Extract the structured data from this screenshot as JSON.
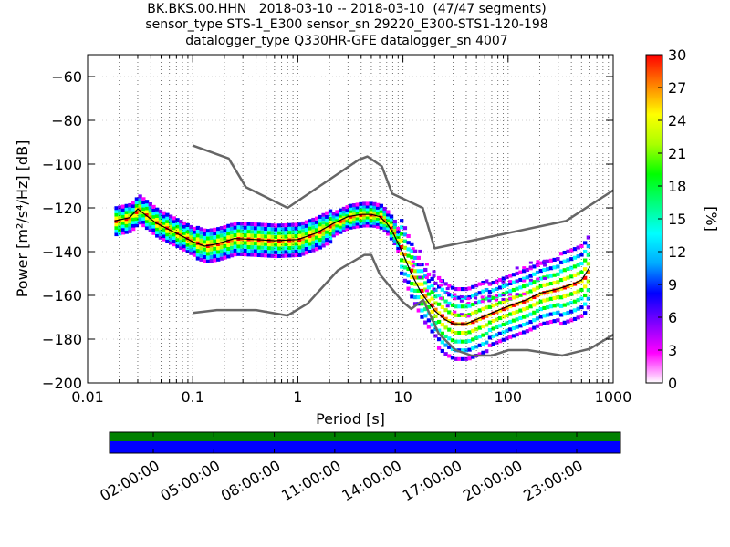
{
  "title_lines": [
    "BK.BKS.00.HHN   2018-03-10 -- 2018-03-10  (47/47 segments)",
    "sensor_type STS-1_E300 sensor_sn 29220_E300-STS1-120-198",
    "datalogger_type Q330HR-GFE datalogger_sn 4007"
  ],
  "chart_data": [
    {
      "type": "heatmap",
      "title": "BK.BKS.00.HHN   2018-03-10 -- 2018-03-10  (47/47 segments)",
      "xlabel": "Period [s]",
      "ylabel": "Power [m²/s⁴/Hz] [dB]",
      "xscale": "log",
      "xlim": [
        0.01,
        1000
      ],
      "ylim": [
        -200,
        -50
      ],
      "xticks": [
        0.01,
        0.1,
        1,
        10,
        100,
        1000
      ],
      "xtick_labels": [
        "0.01",
        "0.1",
        "1",
        "10",
        "100",
        "1000"
      ],
      "yticks": [
        -60,
        -80,
        -100,
        -120,
        -140,
        -160,
        -180,
        -200
      ],
      "ytick_labels": [
        "−60",
        "−80",
        "−100",
        "−120",
        "−140",
        "−160",
        "−180",
        "−200"
      ],
      "grid": "dotted vertical",
      "colorbar": {
        "label": "[%]",
        "range": [
          0,
          30
        ],
        "ticks": [
          0,
          3,
          6,
          9,
          12,
          15,
          18,
          21,
          24,
          27,
          30
        ],
        "colors": [
          "#ffffff",
          "#ff00ff",
          "#8000ff",
          "#0000ff",
          "#00aaff",
          "#00ffff",
          "#00ff80",
          "#00ff00",
          "#aaff00",
          "#ffff00",
          "#ff8000",
          "#ff0000"
        ]
      },
      "series": [
        {
          "kind": "noise-model",
          "color": "#666666",
          "x": [
            0.1,
            0.22,
            0.32,
            0.8,
            3.8,
            4.6,
            6.3,
            7.9,
            15.4,
            20,
            354.8,
            1000
          ],
          "y": [
            -91.5,
            -97.4,
            -110.5,
            -120.0,
            -98.0,
            -96.5,
            -101.0,
            -113.5,
            -120.0,
            -138.5,
            -126.0,
            -112.0
          ]
        },
        {
          "kind": "noise-model",
          "color": "#666666",
          "x": [
            0.1,
            0.17,
            0.4,
            0.8,
            1.24,
            2.4,
            4.3,
            5.0,
            6.0,
            10.0,
            12.0,
            15.6,
            21.9,
            31.6,
            45.0,
            70.0,
            101.0,
            154.0,
            328.0,
            600.0,
            1000.0
          ],
          "y": [
            -168.0,
            -166.7,
            -166.7,
            -169.2,
            -163.7,
            -148.6,
            -141.5,
            -141.5,
            -150.2,
            -163.1,
            -166.2,
            -162.1,
            -177.5,
            -185.0,
            -187.5,
            -187.5,
            -185.0,
            -185.0,
            -187.5,
            -184.4,
            -178.0
          ]
        },
        {
          "kind": "mode",
          "color": "#000000",
          "x": [
            0.018,
            0.025,
            0.03,
            0.035,
            0.045,
            0.06,
            0.08,
            0.1,
            0.13,
            0.17,
            0.25,
            0.4,
            0.6,
            1.0,
            1.5,
            2.2,
            3.0,
            4.0,
            5.0,
            6.0,
            7.0,
            8.0,
            10.0,
            12.0,
            15.0,
            20.0,
            25.0,
            30.0,
            40.0,
            50.0,
            70.0,
            100.0,
            150.0,
            200.0,
            300.0,
            400.0,
            500.0,
            600.0
          ],
          "y": [
            -126,
            -124.5,
            -120.5,
            -123,
            -127,
            -130,
            -133,
            -135.5,
            -137.5,
            -136.5,
            -134,
            -134.5,
            -135,
            -134.5,
            -131.5,
            -127,
            -124,
            -123,
            -123,
            -124,
            -127,
            -131,
            -141,
            -150,
            -159,
            -167,
            -171,
            -173,
            -173,
            -171,
            -168,
            -165,
            -162,
            -159,
            -157,
            -155,
            -153,
            -147
          ]
        }
      ]
    },
    {
      "type": "heatmap",
      "title": "",
      "xlabel": "",
      "ylabel": "",
      "x_tick_labels": [
        "02:00:00",
        "05:00:00",
        "08:00:00",
        "11:00:00",
        "14:00:00",
        "17:00:00",
        "20:00:00",
        "23:00:00"
      ],
      "rows": [
        {
          "color": "#008000"
        },
        {
          "color": "#0000ff"
        }
      ]
    }
  ]
}
